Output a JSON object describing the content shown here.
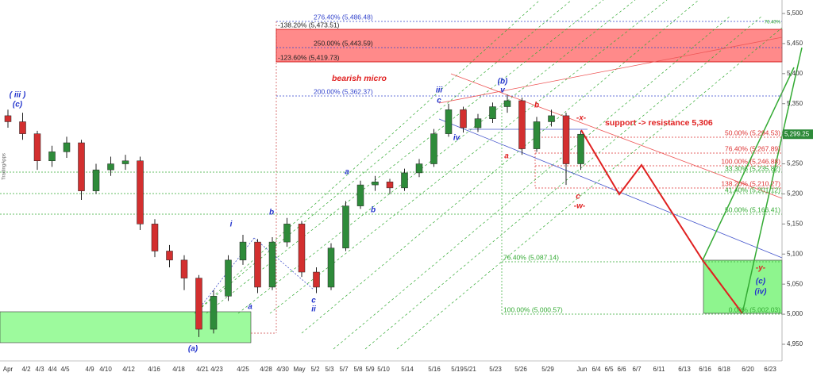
{
  "chart_data": {
    "type": "candlestick",
    "open": [
      5330,
      5320,
      5300,
      5255,
      5270,
      5285,
      5205,
      5240,
      5250,
      5255,
      5150,
      5105,
      5090,
      5060,
      4975,
      5030,
      5090,
      5120,
      5045,
      5120,
      5150,
      5070,
      5045,
      5110,
      5180,
      5215,
      5220,
      5210,
      5235,
      5250,
      5300,
      5340,
      5310,
      5325,
      5345,
      5355,
      5275,
      5320,
      5330,
      5250
    ],
    "high": [
      5340,
      5335,
      5305,
      5280,
      5295,
      5290,
      5250,
      5262,
      5265,
      5262,
      5158,
      5115,
      5098,
      5065,
      5040,
      5098,
      5132,
      5125,
      5128,
      5160,
      5155,
      5078,
      5118,
      5188,
      5222,
      5230,
      5225,
      5242,
      5258,
      5308,
      5350,
      5345,
      5333,
      5352,
      5365,
      5360,
      5328,
      5340,
      5335,
      5305
    ],
    "low": [
      5310,
      5290,
      5240,
      5245,
      5260,
      5190,
      5200,
      5230,
      5240,
      5140,
      5095,
      5078,
      5040,
      4962,
      4968,
      5022,
      5082,
      5035,
      5040,
      5112,
      5062,
      5035,
      5040,
      5105,
      5175,
      5205,
      5200,
      5205,
      5228,
      5245,
      5295,
      5302,
      5303,
      5318,
      5335,
      5265,
      5270,
      5312,
      5215,
      5240
    ],
    "close": [
      5320,
      5300,
      5255,
      5270,
      5285,
      5205,
      5240,
      5250,
      5255,
      5150,
      5105,
      5090,
      5060,
      4975,
      5030,
      5090,
      5120,
      5045,
      5120,
      5150,
      5070,
      5045,
      5110,
      5180,
      5215,
      5220,
      5210,
      5235,
      5250,
      5300,
      5340,
      5310,
      5325,
      5345,
      5355,
      5275,
      5320,
      5330,
      5250,
      5299.25
    ],
    "up_color": "#2e8b3a",
    "down_color": "#d32f2f",
    "last_price": {
      "value": 5299.25,
      "label": "5,299.25"
    },
    "categories": [
      "Apr",
      "4/2",
      "4/3",
      "4/4",
      "4/5",
      "4/9",
      "4/10",
      "4/12",
      "4/16",
      "4/18",
      "4/21",
      "4/23",
      "4/25",
      "4/28",
      "4/30",
      "May",
      "5/2",
      "5/3",
      "5/7",
      "5/8",
      "5/9",
      "5/10",
      "5/14",
      "5/16",
      "5/19",
      "5/21",
      "5/23",
      "5/26",
      "5/29",
      "Jun",
      "6/4",
      "6/5",
      "6/6",
      "6/7",
      "6/11",
      "6/13",
      "6/16",
      "6/18",
      "6/20",
      "6/23"
    ],
    "ylim": [
      4950,
      5500
    ],
    "yticks": [
      {
        "value": 4950,
        "label": "4,950"
      },
      {
        "value": 5000,
        "label": "5,000"
      },
      {
        "value": 5050,
        "label": "5,050"
      },
      {
        "value": 5100,
        "label": "5,100"
      },
      {
        "value": 5150,
        "label": "5,150"
      },
      {
        "value": 5200,
        "label": "5,200"
      },
      {
        "value": 5250,
        "label": "5,250"
      },
      {
        "value": 5300,
        "label": "5,300"
      },
      {
        "value": 5350,
        "label": "5,350"
      },
      {
        "value": 5400,
        "label": "5,400"
      },
      {
        "value": 5450,
        "label": "5,450"
      },
      {
        "value": 5500,
        "label": "5,500"
      }
    ],
    "fib_labels": [
      "276.40% (5,486.48)",
      "-138.20% (5,473.51)",
      "250.00% (5,443.59)",
      "-123.60% (5,419.73)",
      "200.00% (5,362.37)",
      "50.00% (5,294.53)",
      "76.40% (5,267.89)",
      "100.00% (5,246.88)",
      "33.30% (5,235.82)",
      "138.20% (5,210.27)",
      "41.40% (5,201.12)",
      "50.00% (5,166.41)",
      "76.40% (5,087.14)",
      "100.00% (5,000.57)",
      "0.00% (5,002.03)",
      "76.40%"
    ],
    "annotations": [
      "( iii )",
      "(c)",
      "(a)",
      "i",
      "a",
      "b",
      "c",
      "ii",
      "a",
      "b",
      "iii",
      "c",
      "iv",
      "(b)",
      "v",
      "b",
      "a",
      "c",
      "-w-",
      "-x-",
      "-y-",
      "(c)",
      "(iv)",
      "bearish micro",
      "support -> resistance  5,306"
    ],
    "watermark": "TradingApps"
  }
}
